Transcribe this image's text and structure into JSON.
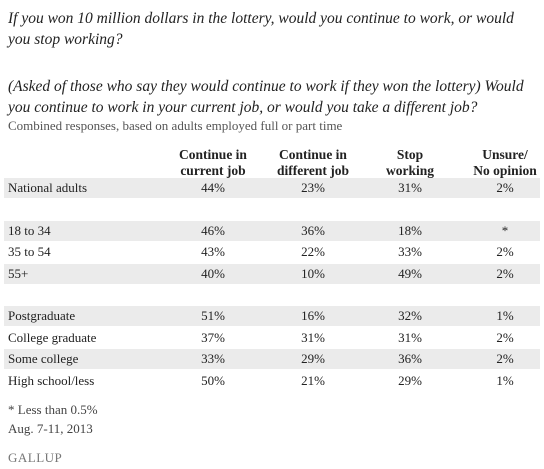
{
  "question": [
    "If you won 10 million dollars in the lottery, would you continue to work, or would you stop working?",
    "(Asked of those who say they would continue to work if they won the lottery) Would you continue to work in your current job, or would you take a different job?"
  ],
  "subtitle": "Combined responses, based on adults employed full or part time",
  "table": {
    "columns": [
      [
        "Continue in",
        "current job"
      ],
      [
        "Continue in",
        "different job"
      ],
      [
        "Stop",
        "working"
      ],
      [
        "Unsure/",
        "No opinion"
      ]
    ],
    "groups": [
      [
        [
          "National adults",
          "44%",
          "23%",
          "31%",
          "2%"
        ]
      ],
      [
        [
          "18 to 34",
          "46%",
          "36%",
          "18%",
          "*"
        ],
        [
          "35 to 54",
          "43%",
          "22%",
          "33%",
          "2%"
        ],
        [
          "55+",
          "40%",
          "10%",
          "49%",
          "2%"
        ]
      ],
      [
        [
          "Postgraduate",
          "51%",
          "16%",
          "32%",
          "1%"
        ],
        [
          "College graduate",
          "37%",
          "31%",
          "31%",
          "2%"
        ],
        [
          "Some college",
          "33%",
          "29%",
          "36%",
          "2%"
        ],
        [
          "High school/less",
          "50%",
          "21%",
          "29%",
          "1%"
        ]
      ]
    ]
  },
  "footnotes": [
    "* Less than 0.5%",
    "Aug. 7-11, 2013"
  ],
  "source": "GALLUP"
}
